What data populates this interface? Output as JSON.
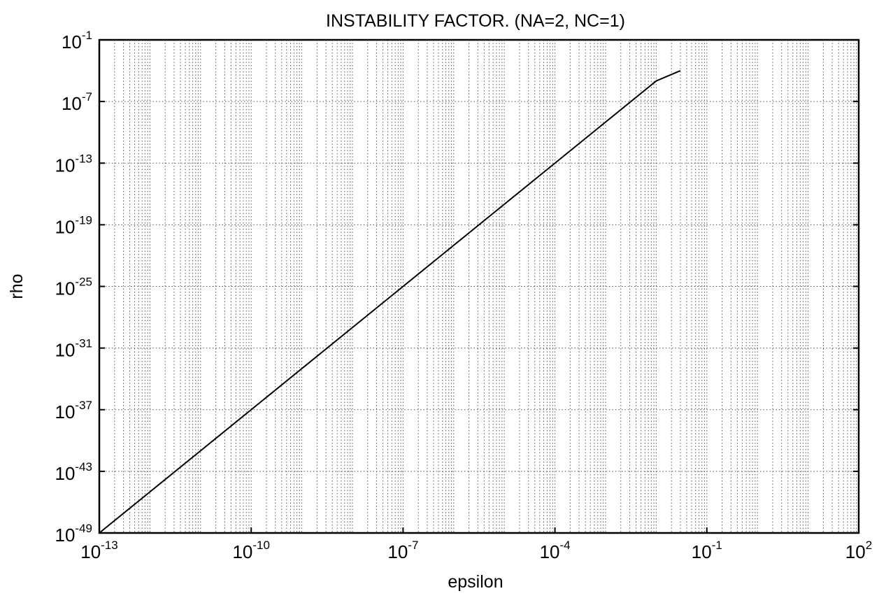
{
  "chart_data": {
    "type": "line",
    "title": "INSTABILITY FACTOR. (NA=2, NC=1)",
    "xlabel": "epsilon",
    "ylabel": "rho",
    "xscale": "log",
    "yscale": "log",
    "xlim": [
      1e-13,
      100
    ],
    "ylim": [
      1e-49,
      0.1
    ],
    "grid": true,
    "x_ticks": [
      {
        "base": "10",
        "exp": "-13",
        "value": 1e-13
      },
      {
        "base": "10",
        "exp": "-10",
        "value": 1e-10
      },
      {
        "base": "10",
        "exp": "-7",
        "value": 1e-07
      },
      {
        "base": "10",
        "exp": "-4",
        "value": 0.0001
      },
      {
        "base": "10",
        "exp": "-1",
        "value": 0.1
      },
      {
        "base": "10",
        "exp": "2",
        "value": 100
      }
    ],
    "y_ticks": [
      {
        "base": "10",
        "exp": "-49",
        "value": 1e-49
      },
      {
        "base": "10",
        "exp": "-43",
        "value": 1e-43
      },
      {
        "base": "10",
        "exp": "-37",
        "value": 1e-37
      },
      {
        "base": "10",
        "exp": "-31",
        "value": 1e-31
      },
      {
        "base": "10",
        "exp": "-25",
        "value": 1e-25
      },
      {
        "base": "10",
        "exp": "-19",
        "value": 1e-19
      },
      {
        "base": "10",
        "exp": "-13",
        "value": 1e-13
      },
      {
        "base": "10",
        "exp": "-7",
        "value": 1e-07
      },
      {
        "base": "10",
        "exp": "-1",
        "value": 0.1
      }
    ],
    "series": [
      {
        "x": [
          1e-13,
          1e-12,
          1e-11,
          1e-10,
          1e-09,
          1e-08,
          1e-07,
          1e-06,
          1e-05,
          0.0001,
          0.001,
          0.01,
          0.03
        ],
        "y": [
          1e-49,
          1e-45,
          1e-41,
          1e-37,
          1e-33,
          1e-29,
          1e-25,
          1e-21,
          1e-17,
          1e-13,
          1e-09,
          1e-05,
          0.0001
        ]
      }
    ],
    "colors": {
      "line": "#000000",
      "grid": "#555555",
      "frame": "#000000"
    }
  }
}
